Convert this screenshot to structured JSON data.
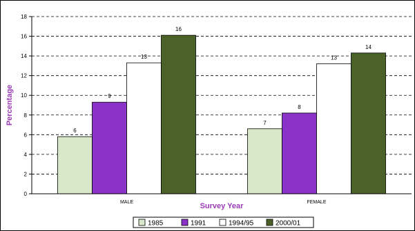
{
  "chart_data": {
    "type": "bar",
    "title": "",
    "xlabel": "Survey Year",
    "ylabel": "Percentage",
    "ylim": [
      0,
      18
    ],
    "yticks": [
      0,
      2,
      4,
      6,
      8,
      10,
      12,
      14,
      16,
      18
    ],
    "grid": true,
    "grid_style": "dashed",
    "legend_position": "bottom",
    "categories": [
      "MALE",
      "FEMALE"
    ],
    "series": [
      {
        "name": "1985",
        "values": [
          5.8,
          6.6
        ],
        "labels": [
          "6",
          "7"
        ],
        "color": "#d8e8c8"
      },
      {
        "name": "1991",
        "values": [
          9.3,
          8.2
        ],
        "labels": [
          "9",
          "8"
        ],
        "color": "#8b32c8"
      },
      {
        "name": "1994/95",
        "values": [
          13.3,
          13.2
        ],
        "labels": [
          "13",
          "13"
        ],
        "color": "#ffffff"
      },
      {
        "name": "2000/01",
        "values": [
          16.1,
          14.3
        ],
        "labels": [
          "16",
          "14"
        ],
        "color": "#4a6228"
      }
    ],
    "colors": {
      "axis_label": "#9b3bb5"
    }
  }
}
